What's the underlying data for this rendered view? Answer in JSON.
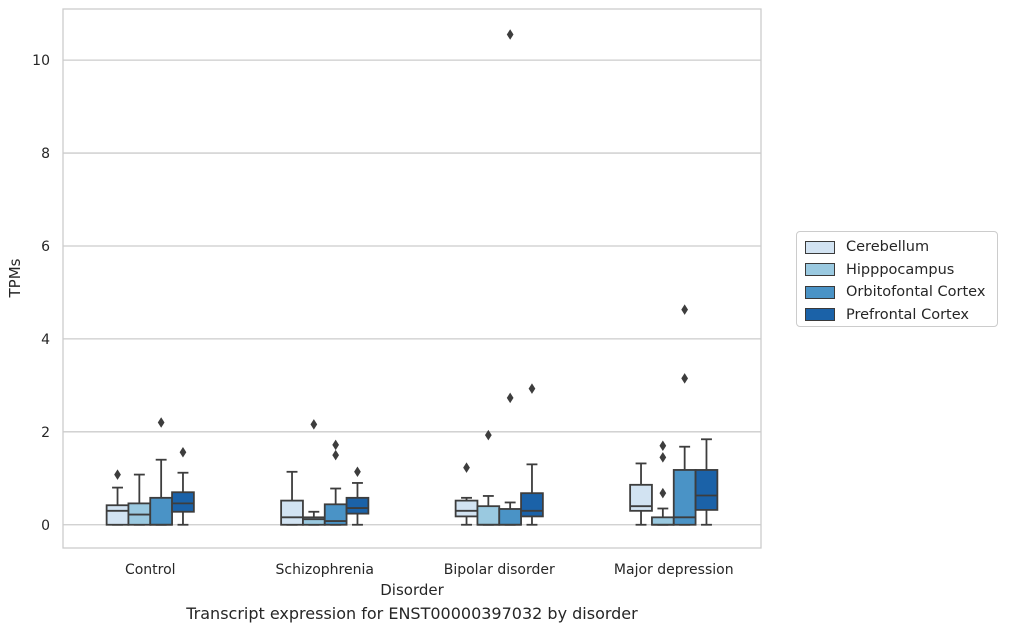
{
  "chart_data": {
    "type": "box",
    "title": "",
    "xlabel": "Disorder",
    "ylabel": "TPMs",
    "caption": "Transcript expression for ENST00000397032 by disorder",
    "ylim": [
      -0.5,
      11.1
    ],
    "yticks": [
      0,
      2,
      4,
      6,
      8,
      10
    ],
    "grid": "horizontal",
    "legend_position": "right",
    "categories": [
      "Control",
      "Schizophrenia",
      "Bipolar disorder",
      "Major depression"
    ],
    "series": [
      {
        "name": "Cerebellum",
        "color": "#d2e3f2",
        "boxes": [
          {
            "whislo": 0.0,
            "q1": 0.0,
            "med": 0.3,
            "q3": 0.42,
            "whishi": 0.8,
            "fliers": [
              1.08
            ]
          },
          {
            "whislo": 0.0,
            "q1": 0.0,
            "med": 0.16,
            "q3": 0.52,
            "whishi": 1.14,
            "fliers": []
          },
          {
            "whislo": 0.0,
            "q1": 0.18,
            "med": 0.3,
            "q3": 0.52,
            "whishi": 0.58,
            "fliers": [
              1.23
            ]
          },
          {
            "whislo": 0.0,
            "q1": 0.3,
            "med": 0.4,
            "q3": 0.86,
            "whishi": 1.32,
            "fliers": []
          }
        ]
      },
      {
        "name": "Hipppocampus",
        "color": "#9ac9e0",
        "boxes": [
          {
            "whislo": 0.0,
            "q1": 0.0,
            "med": 0.22,
            "q3": 0.46,
            "whishi": 1.08,
            "fliers": []
          },
          {
            "whislo": 0.0,
            "q1": 0.0,
            "med": 0.12,
            "q3": 0.16,
            "whishi": 0.28,
            "fliers": [
              2.16
            ]
          },
          {
            "whislo": 0.0,
            "q1": 0.0,
            "med": 0.0,
            "q3": 0.4,
            "whishi": 0.62,
            "fliers": [
              1.93
            ]
          },
          {
            "whislo": 0.0,
            "q1": 0.0,
            "med": 0.0,
            "q3": 0.16,
            "whishi": 0.35,
            "fliers": [
              0.68,
              1.45,
              1.7
            ]
          }
        ]
      },
      {
        "name": "Orbitofontal Cortex",
        "color": "#4a93c6",
        "boxes": [
          {
            "whislo": 0.0,
            "q1": 0.0,
            "med": 0.0,
            "q3": 0.58,
            "whishi": 1.4,
            "fliers": [
              2.2
            ]
          },
          {
            "whislo": 0.0,
            "q1": 0.0,
            "med": 0.08,
            "q3": 0.44,
            "whishi": 0.78,
            "fliers": [
              1.5,
              1.72
            ]
          },
          {
            "whislo": 0.0,
            "q1": 0.0,
            "med": 0.0,
            "q3": 0.34,
            "whishi": 0.48,
            "fliers": [
              2.73,
              10.55
            ]
          },
          {
            "whislo": 0.0,
            "q1": 0.0,
            "med": 0.16,
            "q3": 1.18,
            "whishi": 1.68,
            "fliers": [
              3.15,
              4.63
            ]
          }
        ]
      },
      {
        "name": "Prefrontal Cortex",
        "color": "#1b62a8",
        "boxes": [
          {
            "whislo": 0.0,
            "q1": 0.28,
            "med": 0.46,
            "q3": 0.7,
            "whishi": 1.12,
            "fliers": [
              1.56
            ]
          },
          {
            "whislo": 0.0,
            "q1": 0.24,
            "med": 0.36,
            "q3": 0.58,
            "whishi": 0.9,
            "fliers": [
              1.14
            ]
          },
          {
            "whislo": 0.0,
            "q1": 0.18,
            "med": 0.3,
            "q3": 0.68,
            "whishi": 1.3,
            "fliers": [
              2.93
            ]
          },
          {
            "whislo": 0.0,
            "q1": 0.32,
            "med": 0.63,
            "q3": 1.18,
            "whishi": 1.84,
            "fliers": []
          }
        ]
      }
    ]
  }
}
